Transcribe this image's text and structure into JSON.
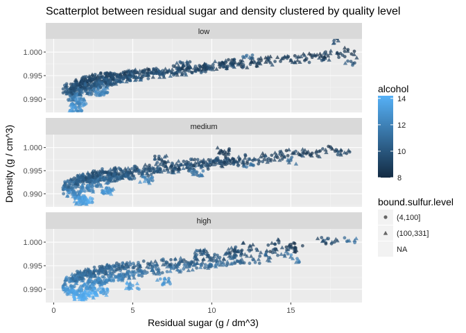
{
  "chart_data": {
    "type": "scatter",
    "title": "Scatterplot between residual sugar and density clustered by quality level",
    "xlabel": "Residual sugar (g / dm^3)",
    "ylabel": "Density (g / cm^3)",
    "xlim": [
      -0.5,
      19.5
    ],
    "ylim": [
      0.9872,
      1.0028
    ],
    "x_ticks": [
      "0",
      "5",
      "10",
      "15"
    ],
    "y_ticks": [
      "0.990",
      "0.995",
      "1.000"
    ],
    "x_tick_values": [
      0,
      5,
      10,
      15
    ],
    "y_tick_values": [
      0.99,
      0.995,
      1.0
    ],
    "grid": true,
    "panels": [
      {
        "label": "low",
        "points": [
          [
            0.9,
            0.9915,
            10.2,
            1
          ],
          [
            1.1,
            0.9925,
            9.8,
            2
          ],
          [
            1.3,
            0.9905,
            11.5,
            1
          ],
          [
            1.5,
            0.993,
            9.5,
            2
          ],
          [
            1.6,
            0.9895,
            12.3,
            1
          ],
          [
            1.8,
            0.9935,
            9.4,
            2
          ],
          [
            2.0,
            0.9918,
            10.6,
            1
          ],
          [
            2.2,
            0.994,
            9.2,
            2
          ],
          [
            2.4,
            0.9928,
            10.1,
            1
          ],
          [
            2.7,
            0.9945,
            9.1,
            2
          ],
          [
            3.0,
            0.9932,
            10.4,
            1
          ],
          [
            3.3,
            0.9948,
            9.3,
            2
          ],
          [
            3.6,
            0.9938,
            9.9,
            1
          ],
          [
            4.0,
            0.995,
            9.4,
            2
          ],
          [
            4.4,
            0.9943,
            10.0,
            1
          ],
          [
            4.8,
            0.9953,
            9.2,
            2
          ],
          [
            5.2,
            0.9947,
            9.8,
            1
          ],
          [
            5.6,
            0.9958,
            9.0,
            2
          ],
          [
            6.0,
            0.9951,
            9.6,
            1
          ],
          [
            6.5,
            0.996,
            9.1,
            2
          ],
          [
            7.0,
            0.9954,
            9.7,
            1
          ],
          [
            7.5,
            0.9963,
            9.0,
            2
          ],
          [
            8.0,
            0.9958,
            9.5,
            1
          ],
          [
            8.5,
            0.9967,
            8.9,
            2
          ],
          [
            9.0,
            0.9962,
            9.4,
            1
          ],
          [
            9.5,
            0.997,
            9.0,
            2
          ],
          [
            10.0,
            0.9966,
            9.3,
            1
          ],
          [
            10.5,
            0.9974,
            8.9,
            2
          ],
          [
            11.0,
            0.997,
            9.2,
            1
          ],
          [
            11.5,
            0.9977,
            8.8,
            2
          ],
          [
            12.0,
            0.9973,
            9.1,
            1
          ],
          [
            12.5,
            0.998,
            8.8,
            2
          ],
          [
            13.0,
            0.9977,
            9.0,
            1
          ],
          [
            13.5,
            0.9984,
            8.7,
            2
          ],
          [
            14.0,
            0.998,
            9.0,
            1
          ],
          [
            14.5,
            0.9987,
            8.7,
            2
          ],
          [
            15.0,
            0.9983,
            8.9,
            1
          ],
          [
            15.5,
            0.999,
            8.6,
            2
          ],
          [
            16.0,
            0.9986,
            8.8,
            1
          ],
          [
            16.5,
            0.9994,
            8.6,
            2
          ],
          [
            17.0,
            0.999,
            8.7,
            1
          ],
          [
            17.5,
            0.9997,
            8.5,
            2
          ],
          [
            18.0,
            0.9995,
            8.6,
            1
          ],
          [
            18.6,
            1.0002,
            8.4,
            2
          ],
          [
            18.8,
            0.998,
            9.5,
            1
          ],
          [
            18.0,
            1.0024,
            9.2,
            2
          ],
          [
            12.4,
            0.9989,
            10.8,
            2
          ],
          [
            8.2,
            0.9972,
            9.5,
            2
          ],
          [
            3.0,
            0.9916,
            12.0,
            1
          ],
          [
            1.4,
            0.9882,
            12.8,
            1
          ]
        ]
      },
      {
        "label": "medium",
        "points": [
          [
            0.9,
            0.9908,
            11.6,
            1
          ],
          [
            1.1,
            0.9922,
            10.9,
            2
          ],
          [
            1.3,
            0.9898,
            12.4,
            1
          ],
          [
            1.5,
            0.9928,
            10.5,
            2
          ],
          [
            1.7,
            0.9885,
            13.2,
            1
          ],
          [
            1.9,
            0.9933,
            10.3,
            2
          ],
          [
            2.1,
            0.9912,
            11.8,
            1
          ],
          [
            2.3,
            0.9938,
            10.0,
            2
          ],
          [
            2.6,
            0.9924,
            11.1,
            1
          ],
          [
            2.9,
            0.9942,
            9.9,
            2
          ],
          [
            3.2,
            0.9929,
            10.8,
            1
          ],
          [
            3.5,
            0.9946,
            9.8,
            2
          ],
          [
            3.9,
            0.9935,
            10.5,
            1
          ],
          [
            4.3,
            0.9949,
            9.7,
            2
          ],
          [
            4.7,
            0.994,
            10.3,
            1
          ],
          [
            5.1,
            0.9952,
            9.6,
            2
          ],
          [
            5.6,
            0.9945,
            10.1,
            1
          ],
          [
            6.1,
            0.9956,
            9.5,
            2
          ],
          [
            6.6,
            0.9949,
            9.9,
            1
          ],
          [
            7.1,
            0.996,
            9.4,
            2
          ],
          [
            7.6,
            0.9953,
            9.8,
            1
          ],
          [
            8.1,
            0.9963,
            9.3,
            2
          ],
          [
            8.6,
            0.9957,
            9.7,
            1
          ],
          [
            9.1,
            0.9967,
            9.2,
            2
          ],
          [
            9.6,
            0.9961,
            9.6,
            1
          ],
          [
            10.1,
            0.997,
            9.2,
            2
          ],
          [
            10.6,
            0.9965,
            9.5,
            1
          ],
          [
            11.1,
            0.9973,
            9.1,
            2
          ],
          [
            11.6,
            0.9968,
            9.4,
            1
          ],
          [
            12.1,
            0.9977,
            9.0,
            2
          ],
          [
            12.6,
            0.9972,
            9.3,
            1
          ],
          [
            13.1,
            0.998,
            8.9,
            2
          ],
          [
            13.6,
            0.9976,
            9.2,
            1
          ],
          [
            14.1,
            0.9984,
            8.9,
            2
          ],
          [
            14.6,
            0.998,
            9.1,
            1
          ],
          [
            15.1,
            0.9988,
            8.8,
            2
          ],
          [
            15.6,
            0.9984,
            9.0,
            1
          ],
          [
            16.1,
            0.9991,
            8.8,
            2
          ],
          [
            16.6,
            0.9988,
            8.9,
            1
          ],
          [
            17.2,
            0.9995,
            8.7,
            2
          ],
          [
            17.8,
            0.9992,
            8.8,
            1
          ],
          [
            18.4,
            0.9989,
            9.4,
            2
          ],
          [
            12.2,
            0.9958,
            11.4,
            1
          ],
          [
            9.0,
            0.9945,
            11.2,
            1
          ],
          [
            5.9,
            0.993,
            12.2,
            1
          ],
          [
            3.4,
            0.9905,
            12.9,
            1
          ],
          [
            2.0,
            0.9888,
            13.6,
            1
          ],
          [
            15.0,
            0.9972,
            10.6,
            1
          ],
          [
            6.8,
            0.9975,
            9.2,
            2
          ],
          [
            10.8,
            0.9992,
            8.8,
            2
          ]
        ]
      },
      {
        "label": "high",
        "points": [
          [
            0.9,
            0.99,
            12.8,
            1
          ],
          [
            1.1,
            0.9918,
            11.9,
            2
          ],
          [
            1.3,
            0.9893,
            13.4,
            1
          ],
          [
            1.5,
            0.9925,
            11.4,
            2
          ],
          [
            1.7,
            0.9885,
            13.9,
            1
          ],
          [
            1.9,
            0.993,
            11.2,
            2
          ],
          [
            2.1,
            0.9905,
            12.9,
            1
          ],
          [
            2.3,
            0.9935,
            10.9,
            2
          ],
          [
            2.6,
            0.9915,
            12.4,
            1
          ],
          [
            2.9,
            0.994,
            10.7,
            2
          ],
          [
            3.2,
            0.992,
            12.1,
            1
          ],
          [
            3.5,
            0.9944,
            10.6,
            2
          ],
          [
            3.9,
            0.9926,
            11.8,
            1
          ],
          [
            4.3,
            0.9948,
            10.5,
            2
          ],
          [
            4.7,
            0.9931,
            11.6,
            1
          ],
          [
            5.1,
            0.9951,
            10.4,
            2
          ],
          [
            5.6,
            0.9936,
            11.4,
            1
          ],
          [
            6.1,
            0.9954,
            10.3,
            2
          ],
          [
            6.6,
            0.994,
            11.2,
            1
          ],
          [
            7.1,
            0.9957,
            10.2,
            2
          ],
          [
            7.6,
            0.9944,
            11.1,
            1
          ],
          [
            8.1,
            0.996,
            10.1,
            2
          ],
          [
            8.6,
            0.9948,
            11.0,
            1
          ],
          [
            9.1,
            0.9963,
            10.0,
            2
          ],
          [
            9.6,
            0.9952,
            10.9,
            1
          ],
          [
            10.1,
            0.9966,
            9.9,
            2
          ],
          [
            10.6,
            0.9956,
            10.8,
            1
          ],
          [
            11.1,
            0.997,
            9.8,
            2
          ],
          [
            11.6,
            0.996,
            10.7,
            1
          ],
          [
            12.1,
            0.9974,
            9.6,
            2
          ],
          [
            12.6,
            0.9963,
            10.6,
            1
          ],
          [
            13.1,
            0.9978,
            9.4,
            2
          ],
          [
            13.6,
            0.9967,
            10.5,
            1
          ],
          [
            14.1,
            0.9984,
            9.0,
            2
          ],
          [
            14.6,
            0.9972,
            10.4,
            1
          ],
          [
            15.1,
            0.9988,
            8.8,
            2
          ],
          [
            15.4,
            0.9965,
            11.8,
            1
          ],
          [
            13.8,
            0.9998,
            8.7,
            2
          ],
          [
            14.9,
            0.9994,
            8.6,
            2
          ],
          [
            15.3,
            0.9985,
            8.9,
            1
          ],
          [
            17.0,
            1.0002,
            9.3,
            2
          ],
          [
            17.6,
            1.0,
            9.7,
            2
          ],
          [
            18.7,
            1.0003,
            11.2,
            2
          ],
          [
            12.4,
            0.9992,
            9.1,
            2
          ],
          [
            11.5,
            0.9982,
            9.4,
            2
          ],
          [
            9.3,
            0.9978,
            9.9,
            2
          ],
          [
            3.0,
            0.9895,
            13.6,
            1
          ],
          [
            2.2,
            0.9888,
            14.0,
            1
          ],
          [
            7.0,
            0.9915,
            12.8,
            1
          ],
          [
            5.0,
            0.9908,
            13.2,
            1
          ]
        ]
      }
    ],
    "legend_color": {
      "title": "alcohol",
      "ticks": [
        "14",
        "12",
        "10",
        "8"
      ],
      "tick_values": [
        14,
        12,
        10,
        8
      ],
      "range": [
        8,
        14.2
      ],
      "low_color": "#132b43",
      "high_color": "#56b1f7"
    },
    "legend_shape": {
      "title": "bound.sulfur.level",
      "items": [
        {
          "label": "(4,100]",
          "shape": "circle"
        },
        {
          "label": "(100,331]",
          "shape": "triangle"
        },
        {
          "label": "NA",
          "shape": "none"
        }
      ]
    }
  }
}
